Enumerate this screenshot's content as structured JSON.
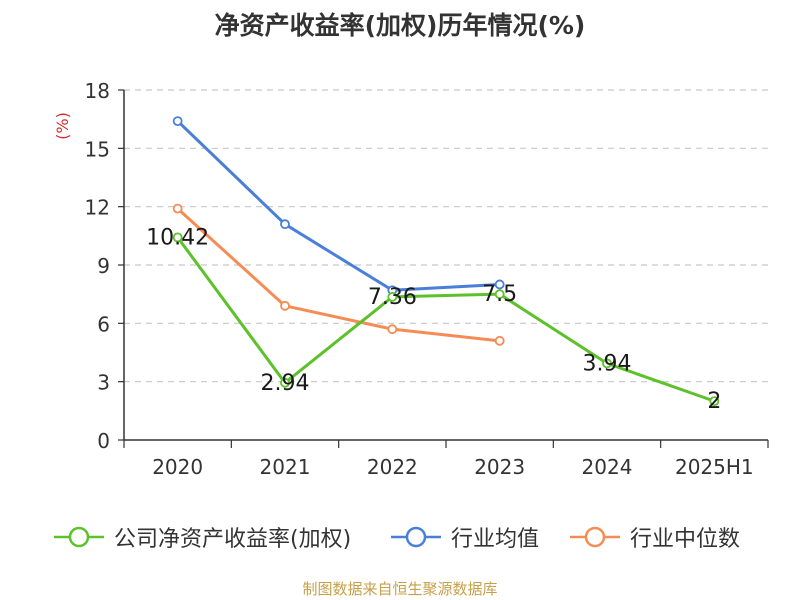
{
  "chart_data": {
    "type": "line",
    "title": "净资产收益率(加权)历年情况(%)",
    "ylabel": "(%)",
    "xlabel": "",
    "categories": [
      "2020",
      "2021",
      "2022",
      "2023",
      "2024",
      "2025H1"
    ],
    "ylim": [
      0,
      18
    ],
    "yticks": [
      0,
      3,
      6,
      9,
      12,
      15,
      18
    ],
    "grid": true,
    "legend_position": "bottom",
    "series": [
      {
        "name": "公司净资产收益率(加权)",
        "color": "#5cc12a",
        "values": [
          10.42,
          2.94,
          7.36,
          7.5,
          3.94,
          2
        ],
        "labels": [
          "10.42",
          "2.94",
          "7.36",
          "7.5",
          "3.94",
          "2"
        ]
      },
      {
        "name": "行业均值",
        "color": "#4a7fd8",
        "values": [
          16.4,
          11.1,
          7.7,
          8.0,
          null,
          null
        ]
      },
      {
        "name": "行业中位数",
        "color": "#f58c55",
        "values": [
          11.9,
          6.9,
          5.7,
          5.1,
          null,
          null
        ]
      }
    ]
  },
  "source": "制图数据来自恒生聚源数据库"
}
